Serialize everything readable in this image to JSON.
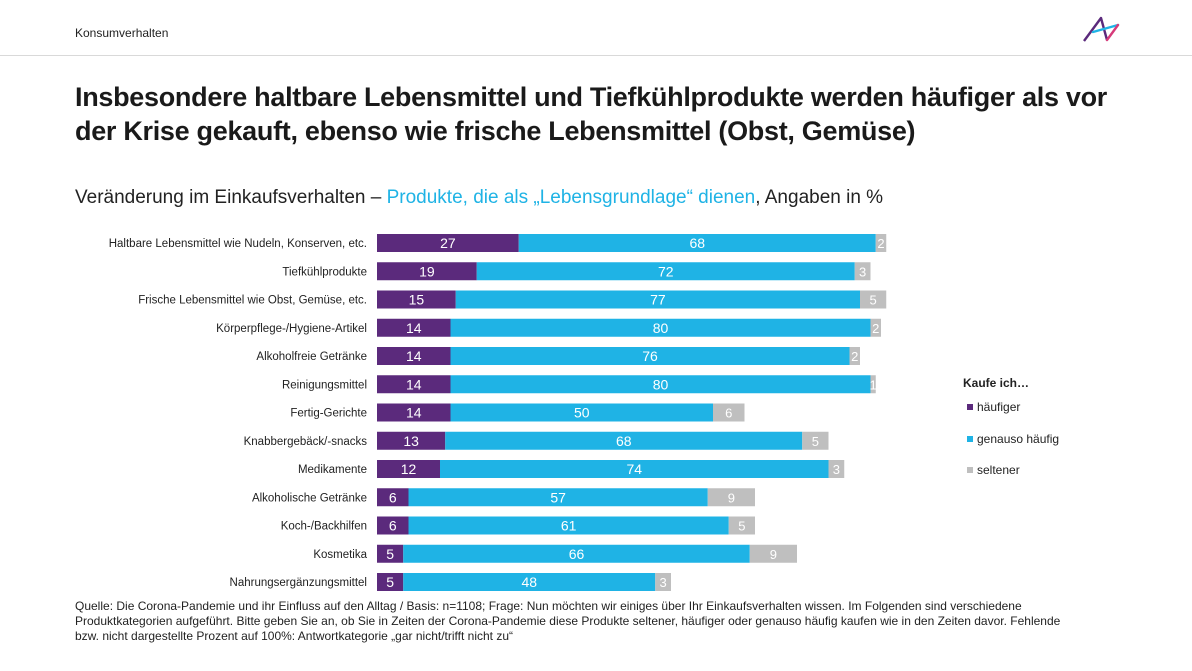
{
  "header": {
    "section": "Konsumverhalten"
  },
  "title": "Insbesondere haltbare Lebensmittel und Tiefkühlprodukte werden häufiger als vor der Krise gekauft, ebenso wie frische Lebensmittel (Obst, Gemüse)",
  "subtitle": {
    "prefix": "Veränderung im Einkaufsverhalten  – ",
    "highlight": "Produkte, die als „Lebensgrundlage“ dienen",
    "suffix": ", Angaben in %"
  },
  "legend": {
    "title": "Kaufe ich…",
    "items": [
      "häufiger",
      "genauso häufig",
      "seltener"
    ]
  },
  "colors": {
    "haeufiger": "#5b2a7c",
    "genauso": "#1fb3e5",
    "seltener": "#bfbfbf",
    "accent": "#1fb3e5"
  },
  "source": "Quelle: Die Corona-Pandemie  und ihr Einfluss auf den Alltag / Basis: n=1108;  Frage: Nun möchten wir einiges über Ihr Einkaufsverhalten  wissen. Im Folgenden  sind verschiedene Produktkategorien  aufgeführt.  Bitte geben Sie an, ob Sie in Zeiten der Corona-Pandemie  diese Produkte seltener, häufiger oder genauso häufig kaufen wie in den Zeiten davor.  Fehlende bzw. nicht dargestellte Prozent auf 100%: Antwortkategorie  „gar nicht/trifft nicht zu“",
  "chart_data": {
    "type": "bar",
    "orientation": "horizontal",
    "stacked": true,
    "categories": [
      "Haltbare Lebensmittel wie Nudeln, Konserven, etc.",
      "Tiefkühlprodukte",
      "Frische Lebensmittel wie Obst, Gemüse, etc.",
      "Körperpflege-/Hygiene-Artikel",
      "Alkoholfreie Getränke",
      "Reinigungsmittel",
      "Fertig-Gerichte",
      "Knabbergebäck/-snacks",
      "Medikamente",
      "Alkoholische Getränke",
      "Koch-/Backhilfen",
      "Kosmetika",
      "Nahrungsergänzungsmittel"
    ],
    "series": [
      {
        "name": "häufiger",
        "values": [
          27,
          19,
          15,
          14,
          14,
          14,
          14,
          13,
          12,
          6,
          6,
          5,
          5
        ]
      },
      {
        "name": "genauso häufig",
        "values": [
          68,
          72,
          77,
          80,
          76,
          80,
          50,
          68,
          74,
          57,
          61,
          66,
          48
        ]
      },
      {
        "name": "seltener",
        "values": [
          2,
          3,
          5,
          2,
          2,
          1,
          6,
          5,
          3,
          9,
          5,
          9,
          3
        ]
      }
    ],
    "xlim": [
      0,
      100
    ],
    "grid": false,
    "legend_position": "right",
    "data_labels": true
  }
}
